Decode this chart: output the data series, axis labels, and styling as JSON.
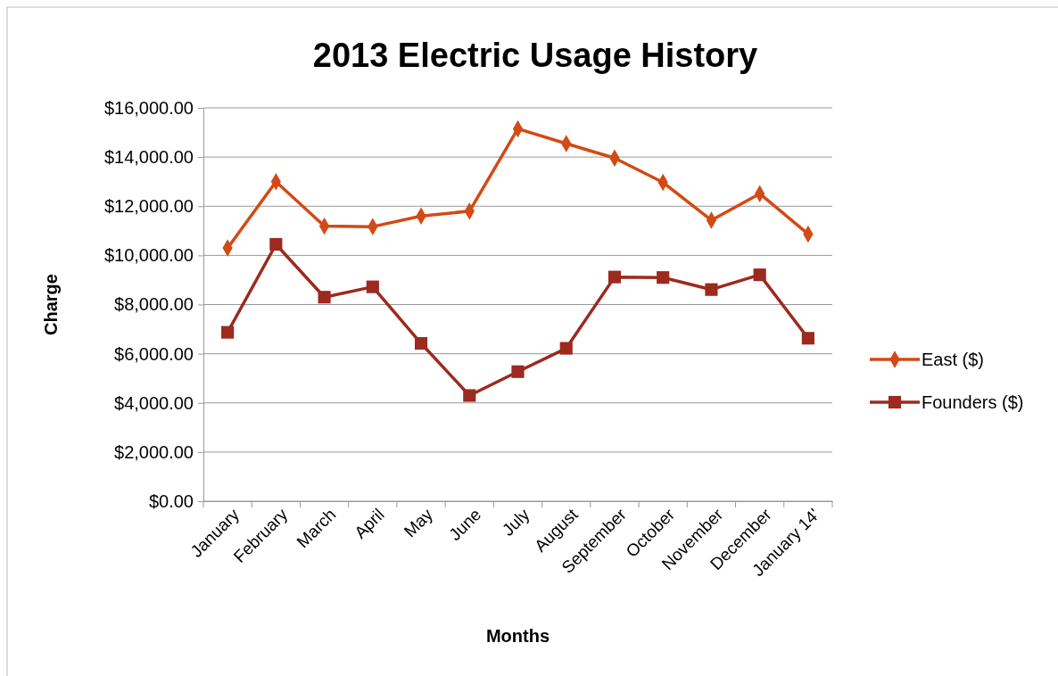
{
  "chart_data": {
    "type": "line",
    "title": "2013 Electric Usage History",
    "xlabel": "Months",
    "ylabel": "Charge",
    "categories": [
      "January",
      "February",
      "March",
      "April",
      "May",
      "June",
      "July",
      "August",
      "September",
      "October",
      "November",
      "December",
      "January 14'"
    ],
    "series": [
      {
        "name": "East ($)",
        "color": "#d24a15",
        "marker": "diamond",
        "values": [
          10300,
          13000,
          11190,
          11170,
          11600,
          11800,
          15150,
          14550,
          13960,
          12970,
          11430,
          12510,
          10870
        ]
      },
      {
        "name": "Founders ($)",
        "color": "#9c2a1e",
        "marker": "square",
        "values": [
          6870,
          10450,
          8300,
          8720,
          6420,
          4300,
          5270,
          6220,
          9120,
          9100,
          8610,
          9210,
          6630
        ]
      }
    ],
    "ylim": [
      0,
      16000
    ],
    "yticks": [
      {
        "value": 0,
        "label": "$0.00"
      },
      {
        "value": 2000,
        "label": "$2,000.00"
      },
      {
        "value": 4000,
        "label": "$4,000.00"
      },
      {
        "value": 6000,
        "label": "$6,000.00"
      },
      {
        "value": 8000,
        "label": "$8,000.00"
      },
      {
        "value": 10000,
        "label": "$10,000.00"
      },
      {
        "value": 12000,
        "label": "$12,000.00"
      },
      {
        "value": 14000,
        "label": "$14,000.00"
      },
      {
        "value": 16000,
        "label": "$16,000.00"
      }
    ],
    "grid": "y",
    "legend": "right",
    "line_style": "solid"
  }
}
